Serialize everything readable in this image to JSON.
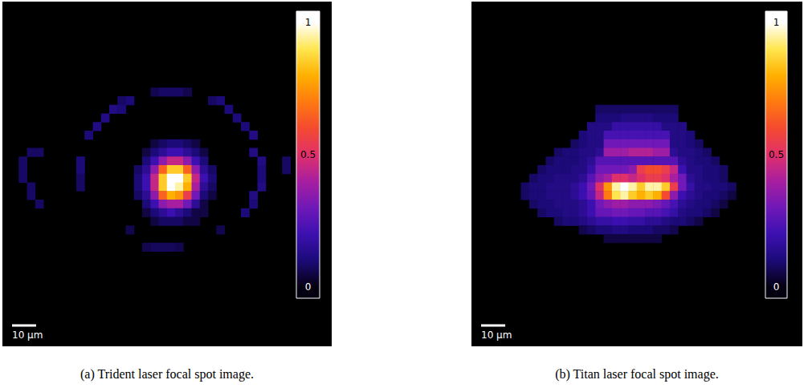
{
  "chart_data": [
    {
      "type": "heatmap",
      "caption": "(a) Trident laser focal spot image.",
      "grid_size": [
        40,
        40
      ],
      "extent_um": [
        137,
        144
      ],
      "scale_bar": {
        "length": 10,
        "label": "10 µm"
      },
      "colorbar": {
        "range": [
          0,
          1
        ],
        "ticks": [
          0,
          0.5,
          1
        ]
      },
      "cells": [
        {
          "row": 10,
          "col": 18,
          "values": [
            0.06,
            0.08,
            0.08,
            0.08,
            0.06
          ]
        },
        {
          "row": 11,
          "col": 14,
          "values": [
            0.08,
            0.1
          ]
        },
        {
          "row": 11,
          "col": 25,
          "values": [
            0.08,
            0.1
          ]
        },
        {
          "row": 12,
          "col": 13,
          "values": [
            0.12,
            0.1
          ]
        },
        {
          "row": 12,
          "col": 27,
          "values": [
            0.1
          ]
        },
        {
          "row": 13,
          "col": 12,
          "values": [
            0.12
          ]
        },
        {
          "row": 13,
          "col": 28,
          "values": [
            0.1
          ]
        },
        {
          "row": 14,
          "col": 11,
          "values": [
            0.12
          ]
        },
        {
          "row": 14,
          "col": 29,
          "values": [
            0.1
          ]
        },
        {
          "row": 15,
          "col": 10,
          "values": [
            0.1
          ]
        },
        {
          "row": 15,
          "col": 30,
          "values": [
            0.12
          ]
        },
        {
          "row": 16,
          "col": 18,
          "values": [
            0.05,
            0.08,
            0.1,
            0.1,
            0.08,
            0.05
          ]
        },
        {
          "row": 17,
          "col": 3,
          "values": [
            0.08,
            0.08
          ]
        },
        {
          "row": 17,
          "col": 17,
          "values": [
            0.05,
            0.1,
            0.15,
            0.2,
            0.2,
            0.15,
            0.1,
            0.05
          ]
        },
        {
          "row": 17,
          "col": 30,
          "values": [
            0.12
          ]
        },
        {
          "row": 18,
          "col": 2,
          "values": [
            0.08
          ]
        },
        {
          "row": 18,
          "col": 9,
          "values": [
            0.1
          ]
        },
        {
          "row": 18,
          "col": 17,
          "values": [
            0.1,
            0.2,
            0.35,
            0.45,
            0.45,
            0.35,
            0.2,
            0.1
          ]
        },
        {
          "row": 18,
          "col": 31,
          "values": [
            0.12
          ]
        },
        {
          "row": 18,
          "col": 34,
          "values": [
            0.08
          ]
        },
        {
          "row": 19,
          "col": 2,
          "values": [
            0.08
          ]
        },
        {
          "row": 19,
          "col": 9,
          "values": [
            0.1
          ]
        },
        {
          "row": 19,
          "col": 16,
          "values": [
            0.08,
            0.15,
            0.35,
            0.65,
            0.85,
            0.85,
            0.65,
            0.35,
            0.15,
            0.08
          ]
        },
        {
          "row": 19,
          "col": 31,
          "values": [
            0.1
          ]
        },
        {
          "row": 19,
          "col": 34,
          "values": [
            0.08
          ]
        },
        {
          "row": 20,
          "col": 2,
          "values": [
            0.08
          ]
        },
        {
          "row": 20,
          "col": 9,
          "values": [
            0.08
          ]
        },
        {
          "row": 20,
          "col": 16,
          "values": [
            0.1,
            0.2,
            0.45,
            0.85,
            1,
            1,
            0.85,
            0.45,
            0.2,
            0.1
          ]
        },
        {
          "row": 20,
          "col": 31,
          "values": [
            0.1
          ]
        },
        {
          "row": 21,
          "col": 3,
          "values": [
            0.08
          ]
        },
        {
          "row": 21,
          "col": 9,
          "values": [
            0.08
          ]
        },
        {
          "row": 21,
          "col": 16,
          "values": [
            0.1,
            0.2,
            0.45,
            0.85,
            1,
            0.95,
            0.8,
            0.4,
            0.15,
            0.08
          ]
        },
        {
          "row": 21,
          "col": 31,
          "values": [
            0.12
          ]
        },
        {
          "row": 22,
          "col": 3,
          "values": [
            0.08
          ]
        },
        {
          "row": 22,
          "col": 16,
          "values": [
            0.08,
            0.15,
            0.35,
            0.65,
            0.8,
            0.75,
            0.55,
            0.3,
            0.1,
            0.05
          ]
        },
        {
          "row": 22,
          "col": 30,
          "values": [
            0.12
          ]
        },
        {
          "row": 23,
          "col": 4,
          "values": [
            0.08
          ]
        },
        {
          "row": 23,
          "col": 17,
          "values": [
            0.1,
            0.2,
            0.35,
            0.4,
            0.4,
            0.3,
            0.15,
            0.05
          ]
        },
        {
          "row": 23,
          "col": 30,
          "values": [
            0.1
          ]
        },
        {
          "row": 24,
          "col": 17,
          "values": [
            0.05,
            0.1,
            0.15,
            0.2,
            0.15,
            0.1,
            0.05,
            0.05
          ]
        },
        {
          "row": 24,
          "col": 29,
          "values": [
            0.1
          ]
        },
        {
          "row": 25,
          "col": 18,
          "values": [
            0.05,
            0.08,
            0.08,
            0.08,
            0.05,
            0.05
          ]
        },
        {
          "row": 26,
          "col": 15,
          "values": [
            0.06
          ]
        },
        {
          "row": 26,
          "col": 26,
          "values": [
            0.06
          ]
        },
        {
          "row": 28,
          "col": 17,
          "values": [
            0.06,
            0.07,
            0.07,
            0.07,
            0.06
          ]
        }
      ]
    },
    {
      "type": "heatmap",
      "caption": "(b) Titan laser focal spot image.",
      "grid_size": [
        40,
        40
      ],
      "extent_um": [
        137,
        144
      ],
      "scale_bar": {
        "length": 10,
        "label": "10 µm"
      },
      "colorbar": {
        "range": [
          0,
          1
        ],
        "ticks": [
          0,
          0.5,
          1
        ]
      },
      "cells": [
        {
          "row": 12,
          "col": 15,
          "values": [
            0.08,
            0.08,
            0.08,
            0.08,
            0.08,
            0.08,
            0.08,
            0.08,
            0.08,
            0.08
          ]
        },
        {
          "row": 13,
          "col": 15,
          "values": [
            0.1,
            0.1,
            0.1,
            0.12,
            0.12,
            0.12,
            0.12,
            0.1,
            0.1,
            0.1
          ]
        },
        {
          "row": 14,
          "col": 14,
          "values": [
            0.12,
            0.12,
            0.12,
            0.18,
            0.18,
            0.18,
            0.18,
            0.18,
            0.18,
            0.12,
            0.12,
            0.12
          ]
        },
        {
          "row": 15,
          "col": 13,
          "values": [
            0.1,
            0.12,
            0.12,
            0.22,
            0.22,
            0.22,
            0.22,
            0.22,
            0.22,
            0.22,
            0.22,
            0.12,
            0.12,
            0.1
          ]
        },
        {
          "row": 16,
          "col": 12,
          "values": [
            0.08,
            0.1,
            0.12,
            0.12,
            0.3,
            0.3,
            0.3,
            0.3,
            0.3,
            0.3,
            0.3,
            0.3,
            0.12,
            0.12,
            0.1,
            0.08
          ]
        },
        {
          "row": 17,
          "col": 10,
          "values": [
            0.08,
            0.1,
            0.1,
            0.12,
            0.12,
            0.15,
            0.38,
            0.38,
            0.38,
            0.42,
            0.42,
            0.42,
            0.38,
            0.38,
            0.15,
            0.12,
            0.12,
            0.1,
            0.08
          ]
        },
        {
          "row": 18,
          "col": 9,
          "values": [
            0.08,
            0.1,
            0.1,
            0.1,
            0.12,
            0.15,
            0.25,
            0.25,
            0.25,
            0.25,
            0.25,
            0.25,
            0.25,
            0.25,
            0.25,
            0.25,
            0.15,
            0.12,
            0.1,
            0.1,
            0.08
          ]
        },
        {
          "row": 19,
          "col": 8,
          "values": [
            0.08,
            0.1,
            0.1,
            0.1,
            0.12,
            0.12,
            0.18,
            0.3,
            0.3,
            0.3,
            0.3,
            0.35,
            0.55,
            0.6,
            0.6,
            0.55,
            0.45,
            0.2,
            0.12,
            0.12,
            0.1,
            0.1,
            0.08
          ]
        },
        {
          "row": 20,
          "col": 7,
          "values": [
            0.08,
            0.1,
            0.1,
            0.12,
            0.12,
            0.12,
            0.15,
            0.25,
            0.35,
            0.4,
            0.5,
            0.5,
            0.45,
            0.5,
            0.55,
            0.55,
            0.5,
            0.4,
            0.3,
            0.15,
            0.12,
            0.1,
            0.1,
            0.08
          ]
        },
        {
          "row": 21,
          "col": 6,
          "values": [
            0.08,
            0.1,
            0.1,
            0.12,
            0.12,
            0.12,
            0.15,
            0.2,
            0.3,
            0.5,
            0.75,
            0.95,
            1,
            0.95,
            0.85,
            0.95,
            0.95,
            0.85,
            0.55,
            0.3,
            0.18,
            0.12,
            0.12,
            0.1,
            0.1,
            0.08
          ]
        },
        {
          "row": 22,
          "col": 6,
          "values": [
            0.08,
            0.1,
            0.1,
            0.12,
            0.12,
            0.12,
            0.15,
            0.2,
            0.28,
            0.45,
            0.7,
            0.9,
            0.95,
            0.85,
            0.8,
            0.85,
            0.8,
            0.6,
            0.35,
            0.2,
            0.15,
            0.12,
            0.1,
            0.1,
            0.08,
            0.05
          ]
        },
        {
          "row": 23,
          "col": 7,
          "values": [
            0.08,
            0.1,
            0.1,
            0.12,
            0.12,
            0.12,
            0.15,
            0.2,
            0.3,
            0.35,
            0.38,
            0.38,
            0.35,
            0.35,
            0.35,
            0.32,
            0.28,
            0.22,
            0.15,
            0.12,
            0.1,
            0.1,
            0.08,
            0.05
          ]
        },
        {
          "row": 24,
          "col": 8,
          "values": [
            0.08,
            0.1,
            0.1,
            0.12,
            0.12,
            0.15,
            0.2,
            0.28,
            0.28,
            0.3,
            0.3,
            0.28,
            0.28,
            0.25,
            0.25,
            0.22,
            0.18,
            0.12,
            0.1,
            0.1,
            0.08,
            0.05
          ]
        },
        {
          "row": 25,
          "col": 10,
          "values": [
            0.08,
            0.1,
            0.1,
            0.12,
            0.15,
            0.18,
            0.18,
            0.2,
            0.2,
            0.18,
            0.18,
            0.15,
            0.15,
            0.12,
            0.1,
            0.1,
            0.08,
            0.05
          ]
        },
        {
          "row": 26,
          "col": 13,
          "values": [
            0.06,
            0.08,
            0.1,
            0.1,
            0.12,
            0.12,
            0.1,
            0.1,
            0.1,
            0.08,
            0.08,
            0.06
          ]
        },
        {
          "row": 27,
          "col": 16,
          "values": [
            0.05,
            0.05,
            0.05,
            0.05,
            0.05,
            0.05,
            0.05
          ]
        }
      ]
    }
  ]
}
